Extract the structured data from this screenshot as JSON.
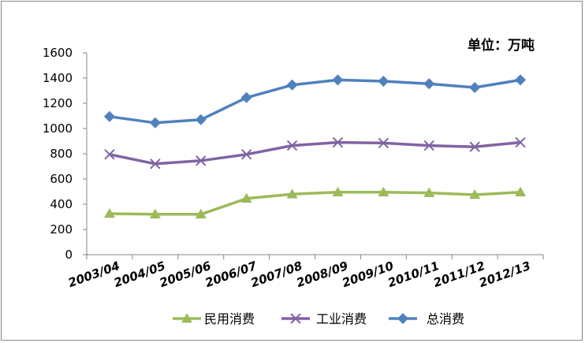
{
  "chart_data": {
    "type": "line",
    "unit_note": "单位：万吨",
    "categories": [
      "2003/04",
      "2004/05",
      "2005/06",
      "2006/07",
      "2007/08",
      "2008/09",
      "2009/10",
      "2010/11",
      "2011/12",
      "2012/13"
    ],
    "ylim": [
      0,
      1600
    ],
    "yticks": [
      "0",
      "200",
      "400",
      "600",
      "800",
      "1000",
      "1200",
      "1400",
      "1600"
    ],
    "grid": false,
    "legend_position": "bottom",
    "series": [
      {
        "name": "民用消费",
        "color": "#9BBB59",
        "marker": "triangle",
        "values": [
          325,
          320,
          320,
          445,
          480,
          495,
          495,
          490,
          475,
          495
        ]
      },
      {
        "name": "工业消费",
        "color": "#8064A2",
        "marker": "x",
        "values": [
          795,
          720,
          745,
          795,
          865,
          890,
          885,
          865,
          855,
          890
        ]
      },
      {
        "name": "总消费",
        "color": "#4F81BD",
        "marker": "diamond",
        "values": [
          1095,
          1045,
          1070,
          1245,
          1345,
          1385,
          1375,
          1355,
          1325,
          1385
        ]
      }
    ]
  }
}
